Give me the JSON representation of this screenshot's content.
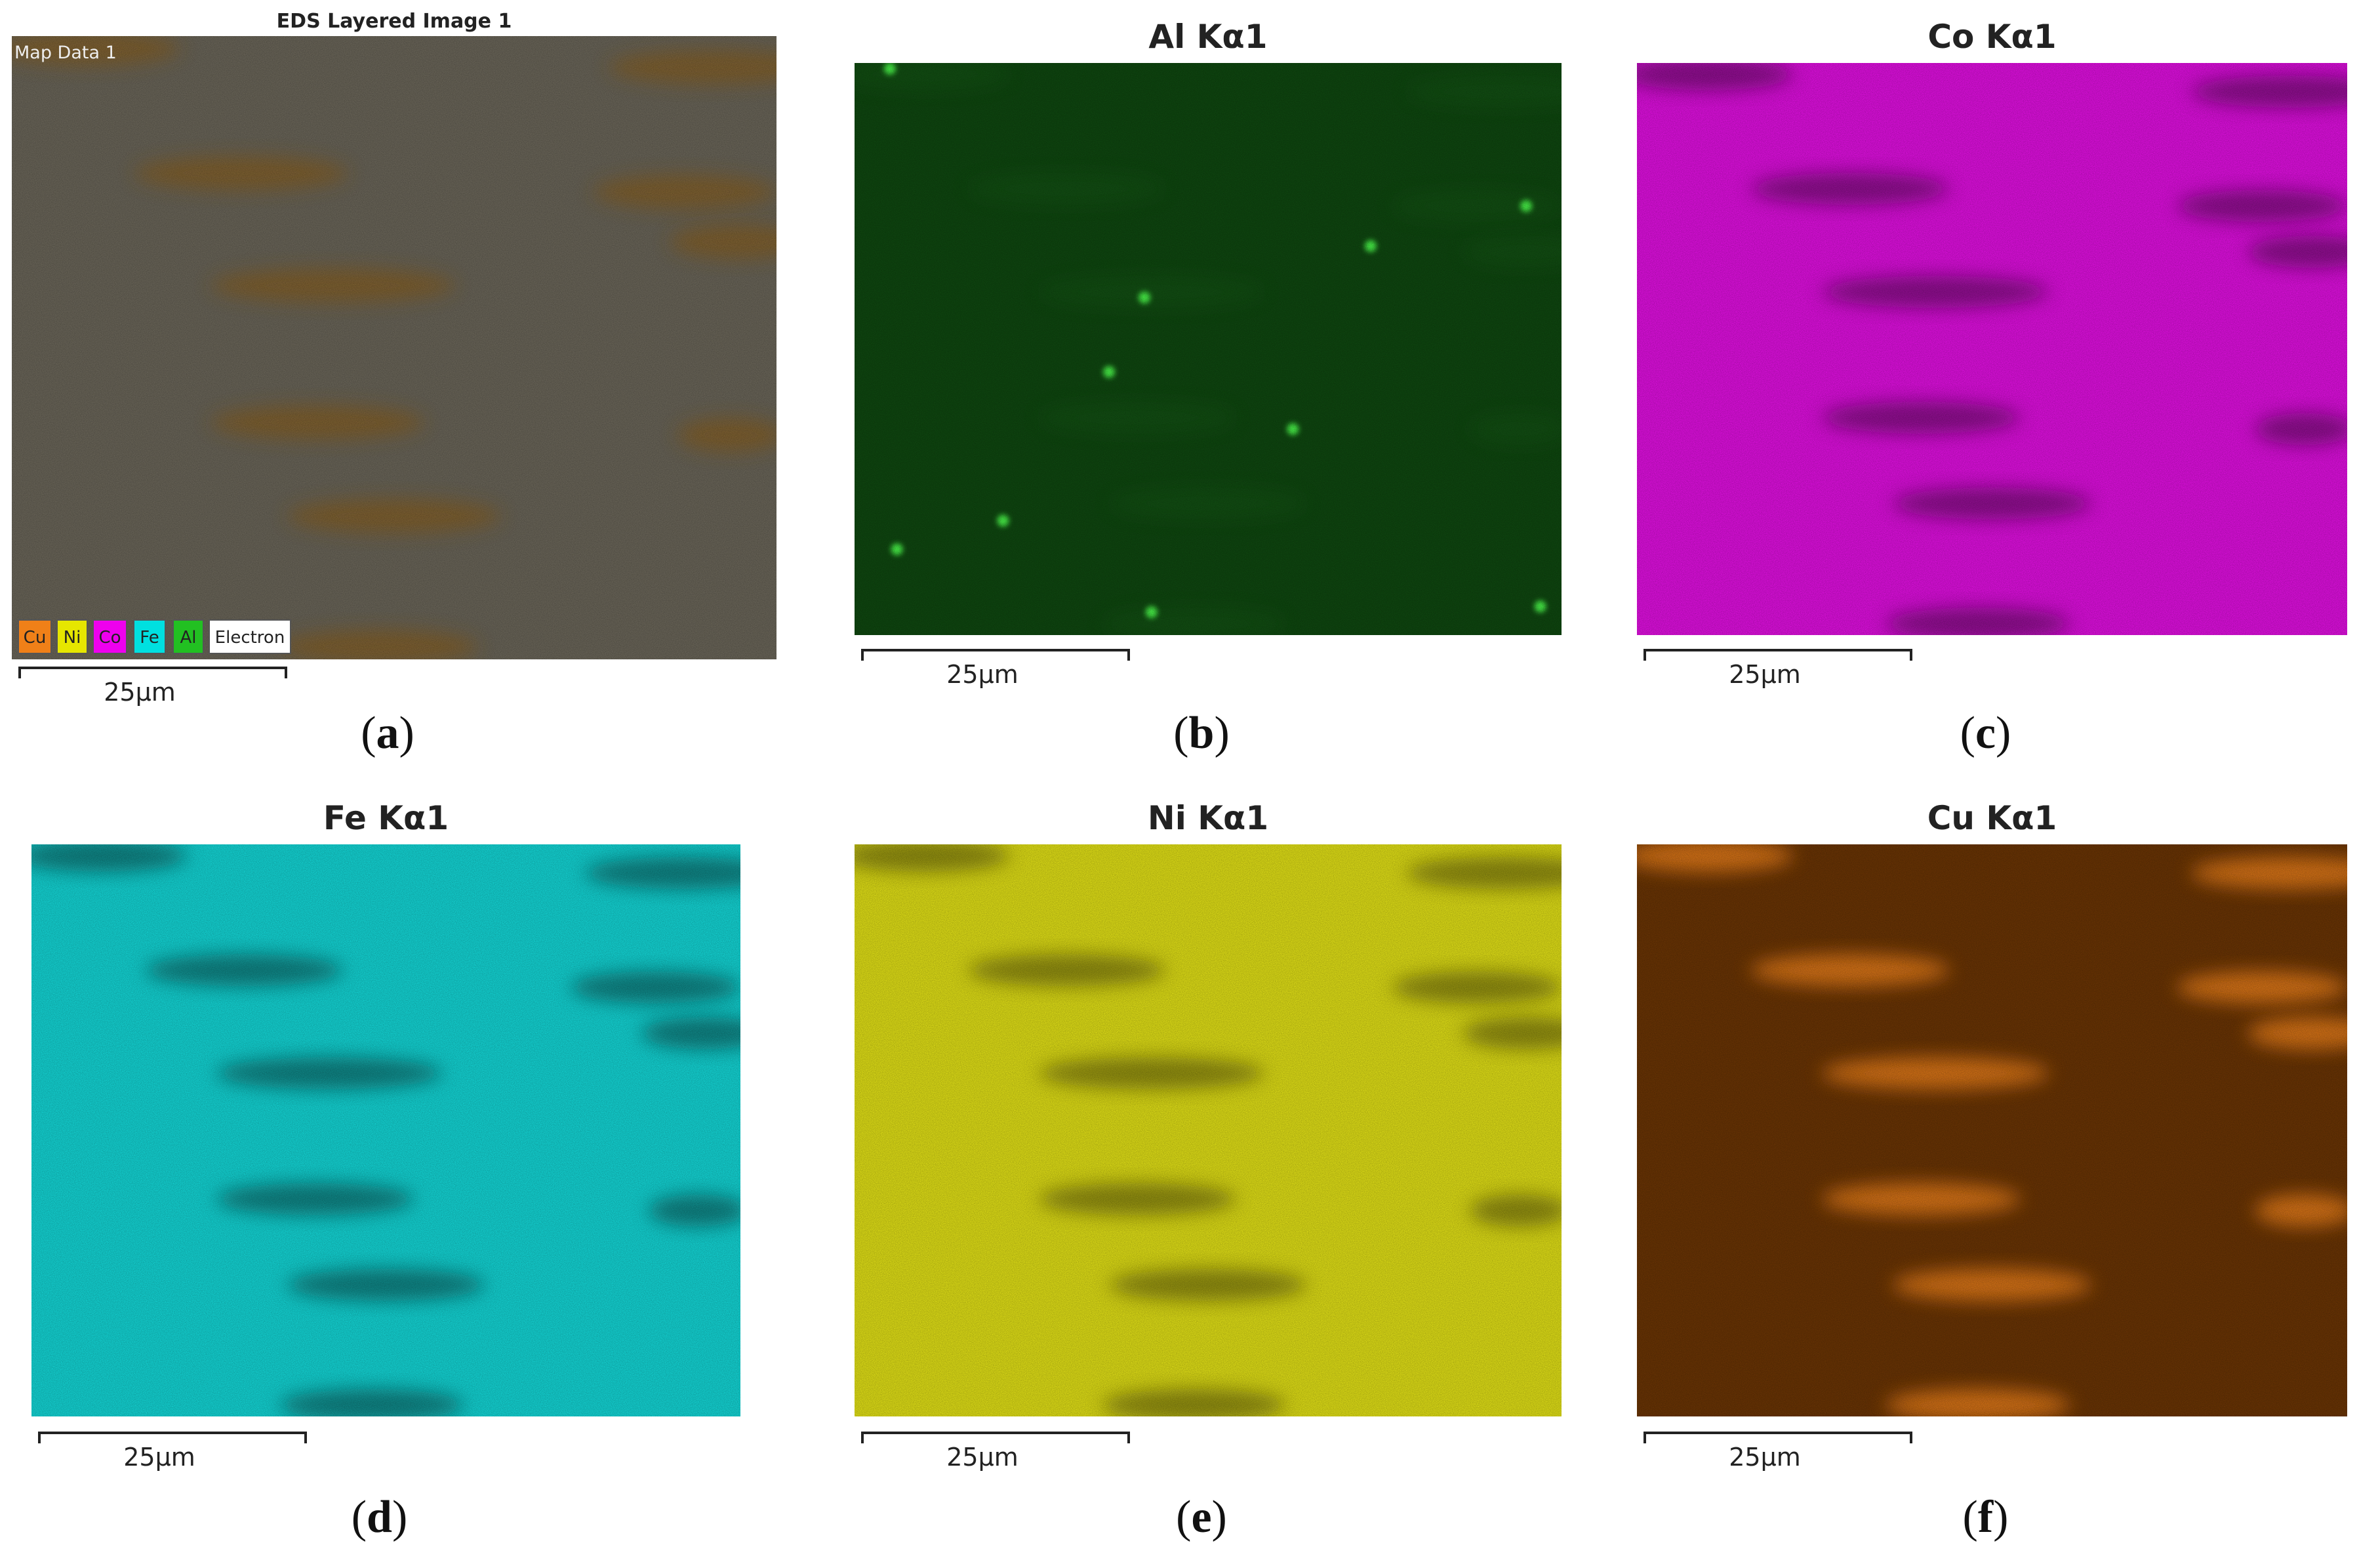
{
  "panels": [
    {
      "title": "EDS Layered Image 1",
      "scale_label": "25μm",
      "caption": "(a)",
      "color": "#6e695c",
      "streak": "#8a6426",
      "subtitle": "Map Data 1",
      "legend": [
        {
          "label": "Cu",
          "color": "#f08018"
        },
        {
          "label": "Ni",
          "color": "#e6e600"
        },
        {
          "label": "Co",
          "color": "#ee00ee"
        },
        {
          "label": "Fe",
          "color": "#00e0e0"
        },
        {
          "label": "Al",
          "color": "#22c022"
        },
        {
          "label": "Electron",
          "color": "#ffffff"
        }
      ]
    },
    {
      "title": "Al Kα1",
      "scale_label": "25μm",
      "caption": "(b)",
      "color": "#0f4a10",
      "streak": "#1a6a1a"
    },
    {
      "title": "Co Kα1",
      "scale_label": "25μm",
      "caption": "(c)",
      "color": "#e810e8",
      "streak": "#7a0a7a"
    },
    {
      "title": "Fe Kα1",
      "scale_label": "25μm",
      "caption": "(d)",
      "color": "#14dede",
      "streak": "#0a6f70"
    },
    {
      "title": "Ni Kα1",
      "scale_label": "25μm",
      "caption": "(e)",
      "color": "#e9e817",
      "streak": "#7e7a10"
    },
    {
      "title": "Cu Kα1",
      "scale_label": "25μm",
      "caption": "(f)",
      "color": "#6e3604",
      "streak": "#ff8a1a"
    }
  ]
}
